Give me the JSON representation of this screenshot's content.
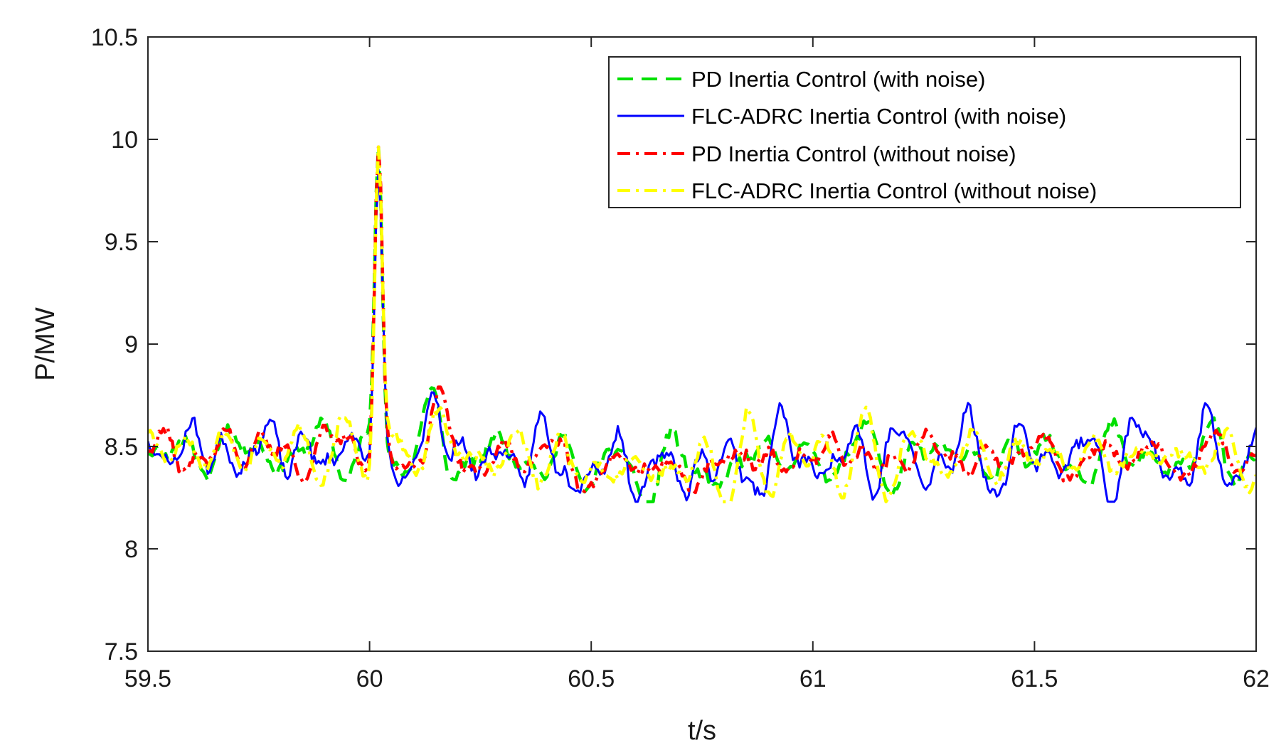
{
  "chart_data": {
    "type": "line",
    "title": "",
    "xlabel": "t/s",
    "ylabel": "P/MW",
    "xlim": [
      59.5,
      62
    ],
    "ylim": [
      7.5,
      10.5
    ],
    "xticks": [
      59.5,
      60,
      60.5,
      61,
      61.5,
      62
    ],
    "yticks": [
      7.5,
      8,
      8.5,
      9,
      9.5,
      10,
      10.5
    ],
    "xtick_labels": [
      "59.5",
      "60",
      "60.5",
      "61",
      "61.5",
      "62"
    ],
    "ytick_labels": [
      "7.5",
      "8",
      "8.5",
      "9",
      "9.5",
      "10",
      "10.5"
    ],
    "grid": false,
    "legend_position": "top-right",
    "sample_step": 0.005,
    "signal_model": {
      "baseline_before_disturbance": 8.48,
      "baseline_after_disturbance": 8.45,
      "disturbance_time": 60.0,
      "peak_time": 60.02,
      "peak_value": 10.0,
      "overshoot_time": 60.15,
      "overshoot_value": 8.72,
      "noise_amplitude": 0.13,
      "min_value": 8.23,
      "max_noise_value": 8.79
    },
    "series": [
      {
        "name": "PD Inertia Control (with noise)",
        "color": "#00e000",
        "style": "dashed",
        "seed": 11,
        "noise_scale": 1.0,
        "peak": 9.98
      },
      {
        "name": "FLC-ADRC Inertia Control (with noise)",
        "color": "#0000ff",
        "style": "solid",
        "seed": 23,
        "noise_scale": 1.15,
        "peak": 9.7
      },
      {
        "name": "PD Inertia Control (without noise)",
        "color": "#ff0000",
        "style": "dashdot",
        "seed": 37,
        "noise_scale": 0.95,
        "peak": 9.92
      },
      {
        "name": "FLC-ADRC Inertia Control (without noise)",
        "color": "#ffff00",
        "style": "dashdot",
        "seed": 51,
        "noise_scale": 1.0,
        "peak": 10.0
      }
    ]
  }
}
